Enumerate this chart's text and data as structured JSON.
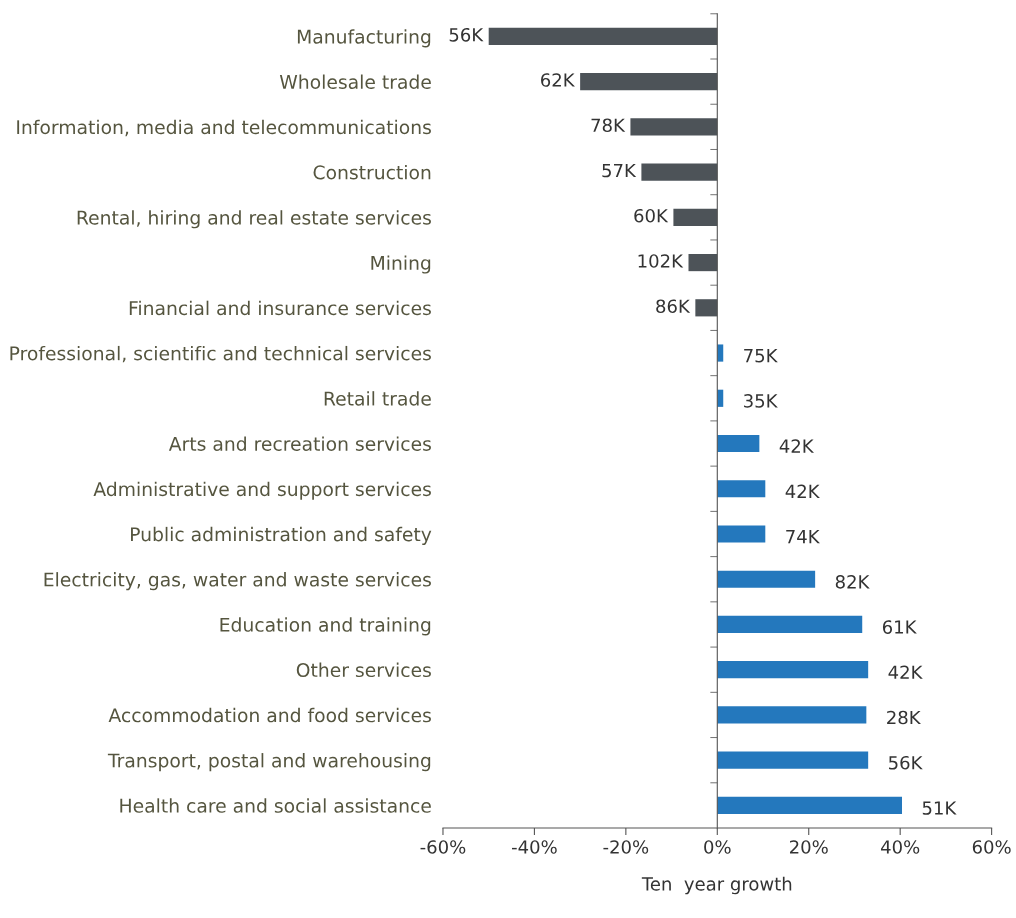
{
  "chart_data": {
    "type": "bar",
    "orientation": "horizontal",
    "xlabel": "Ten  year growth",
    "categories": [
      "Manufacturing",
      "Wholesale trade",
      "Information, media and telecommunications",
      "Construction",
      "Rental, hiring and real estate services",
      "Mining",
      "Financial and insurance services",
      "Professional, scientific and technical services",
      "Retail trade",
      "Arts and recreation services",
      "Administrative and support services",
      "Public administration and safety",
      "Electricity, gas, water and waste services",
      "Education and training",
      "Other services",
      "Accommodation and food services",
      "Transport, postal and warehousing",
      "Health care and social assistance"
    ],
    "values": [
      -50,
      -30,
      -19,
      -16.6,
      -9.6,
      -6.3,
      -4.8,
      1.3,
      1.3,
      9.2,
      10.5,
      10.5,
      21.4,
      31.7,
      33,
      32.6,
      33,
      40.4
    ],
    "annotations": [
      {
        "text": "56K",
        "x": -50,
        "y": "Manufacturing"
      },
      {
        "text": "62K",
        "x": -30,
        "y": "Wholesale trade"
      },
      {
        "text": "78K",
        "x": -19,
        "y": "Information, media and telecommunications"
      },
      {
        "text": "57K",
        "x": -16.6,
        "y": "Construction"
      },
      {
        "text": "60K",
        "x": -9.6,
        "y": "Rental, hiring and real estate services"
      },
      {
        "text": "102K",
        "x": -6.3,
        "y": "Mining"
      },
      {
        "text": "86K",
        "x": -4.8,
        "y": "Financial and insurance services"
      },
      {
        "text": "75K",
        "x": 1.3,
        "y": "Professional, scientific and technical services"
      },
      {
        "text": "35K",
        "x": 1.3,
        "y": "Retail trade"
      },
      {
        "text": "42K",
        "x": 9.2,
        "y": "Arts and recreation services"
      },
      {
        "text": "42K",
        "x": 10.5,
        "y": "Administrative and support services"
      },
      {
        "text": "74K",
        "x": 10.5,
        "y": "Public administration and safety"
      },
      {
        "text": "82K",
        "x": 21.4,
        "y": "Electricity, gas, water and waste services"
      },
      {
        "text": "61K",
        "x": 31.7,
        "y": "Education and training"
      },
      {
        "text": "42K",
        "x": 33,
        "y": "Other services"
      },
      {
        "text": "28K",
        "x": 32.6,
        "y": "Accommodation and food services"
      },
      {
        "text": "56K",
        "x": 33,
        "y": "Transport, postal and warehousing"
      },
      {
        "text": "51K",
        "x": 40.4,
        "y": "Health care and social assistance"
      }
    ],
    "colors": [
      "#4d5358",
      "#4d5358",
      "#4d5358",
      "#4d5358",
      "#4d5358",
      "#4d5358",
      "#4d5358",
      "#2478bd",
      "#2478bd",
      "#2478bd",
      "#2478bd",
      "#2478bd",
      "#2478bd",
      "#2478bd",
      "#2478bd",
      "#2478bd",
      "#2478bd",
      "#2478bd"
    ],
    "xlim": [
      -60,
      60
    ],
    "xticks": [
      {
        "value": -60,
        "label": "-60%"
      },
      {
        "value": -40,
        "label": "-40%"
      },
      {
        "value": -20,
        "label": "-20%"
      },
      {
        "value": 0,
        "label": "0%"
      },
      {
        "value": 20,
        "label": "20%"
      },
      {
        "value": 40,
        "label": "40%"
      },
      {
        "value": 60,
        "label": "60%"
      }
    ]
  }
}
